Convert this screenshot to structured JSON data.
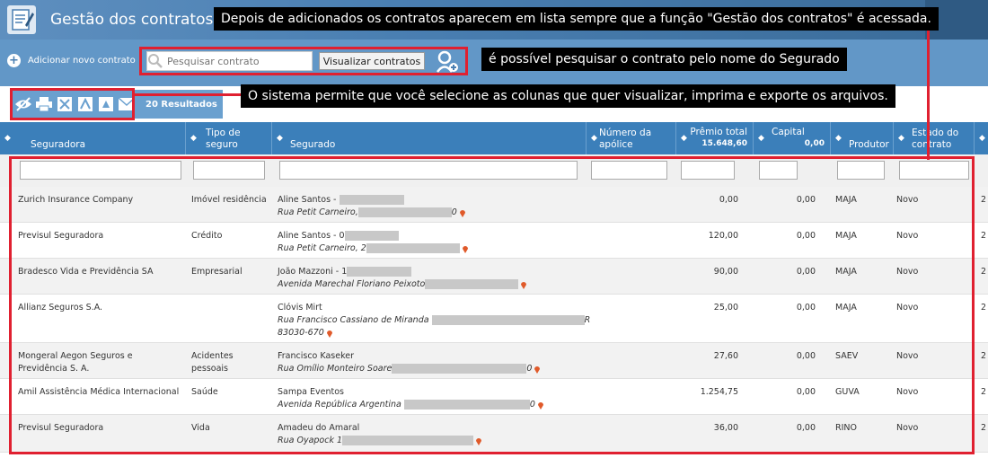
{
  "header": {
    "title": "Gestão dos contratos"
  },
  "toolbar": {
    "add_label": "Adicionar novo contrato",
    "search_placeholder": "Pesquisar contrato",
    "view_button": "Visualizar contratos"
  },
  "actions": {
    "results": "20 Resultados"
  },
  "table": {
    "columns": [
      "Seguradora",
      "Tipo de seguro",
      "Segurado",
      "Número da apólice",
      "Prêmio total",
      "Capital",
      "Produtor",
      "Estado do contrato"
    ],
    "premio_total_sum": "15.648,60",
    "capital_sum": "0,00",
    "rows": [
      {
        "seguradora": "Zurich Insurance Company",
        "tipo": "Imóvel residência",
        "segurado": "Aline Santos -",
        "endereco": "Rua Petit Carneiro,",
        "endereco_tail": "0",
        "premio": "0,00",
        "capital": "0,00",
        "produtor": "MAJA",
        "estado": "Novo",
        "extra": "2"
      },
      {
        "seguradora": "Previsul Seguradora",
        "tipo": "Crédito",
        "segurado": "Aline Santos - 0",
        "endereco": "Rua Petit Carneiro, 2",
        "endereco_tail": "",
        "premio": "120,00",
        "capital": "0,00",
        "produtor": "MAJA",
        "estado": "Novo",
        "extra": "2"
      },
      {
        "seguradora": "Bradesco Vida e Previdência SA",
        "tipo": "Empresarial",
        "segurado": "João Mazzoni - 1",
        "endereco": "Avenida Marechal Floriano Peixoto",
        "endereco_tail": "",
        "premio": "90,00",
        "capital": "0,00",
        "produtor": "MAJA",
        "estado": "Novo",
        "extra": "2"
      },
      {
        "seguradora": "Allianz Seguros S.A.",
        "tipo": "",
        "segurado": "Clóvis Mirt",
        "endereco": "Rua Francisco Cassiano de Miranda",
        "endereco_tail": "R",
        "endereco2": "83030-670",
        "premio": "25,00",
        "capital": "0,00",
        "produtor": "MAJA",
        "estado": "Novo",
        "extra": "2"
      },
      {
        "seguradora": "Mongeral Aegon Seguros e Previdência S. A.",
        "tipo": "Acidentes pessoais",
        "segurado": "Francisco Kaseker",
        "endereco": "Rua Omílio Monteiro Soare",
        "endereco_tail": "0",
        "premio": "27,60",
        "capital": "0,00",
        "produtor": "SAEV",
        "estado": "Novo",
        "extra": "2"
      },
      {
        "seguradora": "Amil Assistência Médica Internacional",
        "tipo": "Saúde",
        "segurado": "Sampa Eventos",
        "endereco": "Avenida República Argentina",
        "endereco_tail": "0",
        "premio": "1.254,75",
        "capital": "0,00",
        "produtor": "GUVA",
        "estado": "Novo",
        "extra": "2"
      },
      {
        "seguradora": "Previsul Seguradora",
        "tipo": "Vida",
        "segurado": "Amadeu do Amaral",
        "endereco": "Rua Oyapock 1",
        "endereco_tail": "",
        "premio": "36,00",
        "capital": "0,00",
        "produtor": "RINO",
        "estado": "Novo",
        "extra": "2"
      }
    ]
  },
  "callouts": {
    "top": "Depois de adicionados os contratos aparecem em lista sempre que a função \"Gestão dos contratos\" é acessada.",
    "search": "é possível pesquisar o contrato pelo nome do Segurado",
    "actions": "O sistema permite que você selecione as colunas que quer visualizar, imprima e exporte os arquivos."
  },
  "colors": {
    "header": "#4a7fb2",
    "table_head": "#3b7fba",
    "highlight": "#e02030"
  }
}
